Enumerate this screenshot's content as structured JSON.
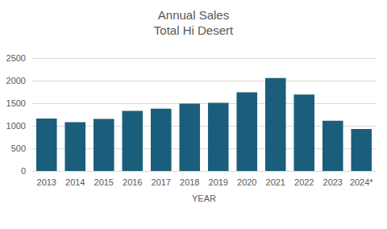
{
  "chart_data": {
    "type": "bar",
    "title": "Annual Sales",
    "subtitle": "Total Hi Desert",
    "x_label": "YEAR",
    "categories": [
      "2013",
      "2014",
      "2015",
      "2016",
      "2017",
      "2018",
      "2019",
      "2020",
      "2021",
      "2022",
      "2023",
      "2024*"
    ],
    "values": [
      1160,
      1080,
      1150,
      1330,
      1380,
      1490,
      1510,
      1740,
      2060,
      1690,
      1110,
      930
    ],
    "color": "#1b5e7b",
    "ylim": [
      0,
      2500
    ],
    "yticks": [
      0,
      500,
      1000,
      1500,
      2000,
      2500
    ],
    "grid": true
  }
}
